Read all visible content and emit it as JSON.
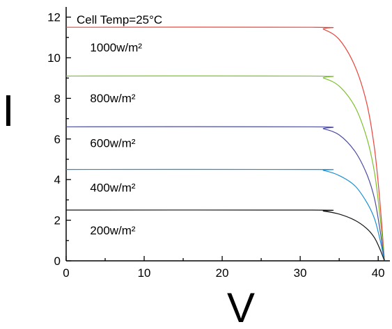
{
  "chart_data": {
    "type": "line",
    "title": "",
    "xlabel": "V",
    "ylabel": "I",
    "xlim": [
      0,
      41.5
    ],
    "ylim": [
      0,
      12.5
    ],
    "x_ticks": [
      0,
      10,
      20,
      30,
      40
    ],
    "y_ticks": [
      0,
      2,
      4,
      6,
      8,
      10,
      12
    ],
    "x_tick_labels": [
      "0",
      "10",
      "20",
      "30",
      "40"
    ],
    "y_tick_labels": [
      "0",
      "2",
      "4",
      "6",
      "8",
      "10",
      "12"
    ],
    "annotation": "Cell Temp=25°C",
    "grid": false,
    "series": [
      {
        "name": "1000w/m²",
        "color": "#e8463c",
        "points": [
          [
            0,
            11.5
          ],
          [
            31.5,
            11.5
          ],
          [
            33,
            11.4
          ],
          [
            35,
            10.9
          ],
          [
            37,
            9.6
          ],
          [
            38.5,
            7.8
          ],
          [
            39.5,
            5.6
          ],
          [
            40.2,
            3.0
          ],
          [
            40.8,
            0
          ]
        ]
      },
      {
        "name": "800w/m²",
        "color": "#7ec12c",
        "points": [
          [
            0,
            9.1
          ],
          [
            31.5,
            9.1
          ],
          [
            33,
            9.0
          ],
          [
            35,
            8.6
          ],
          [
            37,
            7.6
          ],
          [
            38.5,
            6.1
          ],
          [
            39.5,
            4.4
          ],
          [
            40.2,
            2.3
          ],
          [
            40.8,
            0
          ]
        ]
      },
      {
        "name": "600w/m²",
        "color": "#4a4aa0",
        "points": [
          [
            0,
            6.6
          ],
          [
            31.5,
            6.6
          ],
          [
            33,
            6.5
          ],
          [
            35,
            6.2
          ],
          [
            37,
            5.4
          ],
          [
            38.5,
            4.3
          ],
          [
            39.5,
            3.1
          ],
          [
            40.2,
            1.6
          ],
          [
            40.8,
            0
          ]
        ]
      },
      {
        "name": "400w/m²",
        "color": "#1a8fd0",
        "points": [
          [
            0,
            4.5
          ],
          [
            31.5,
            4.5
          ],
          [
            33,
            4.45
          ],
          [
            35,
            4.2
          ],
          [
            37,
            3.7
          ],
          [
            38.5,
            2.9
          ],
          [
            39.5,
            2.1
          ],
          [
            40.2,
            1.1
          ],
          [
            40.8,
            0
          ]
        ]
      },
      {
        "name": "200w/m²",
        "color": "#111111",
        "points": [
          [
            0,
            2.5
          ],
          [
            31.5,
            2.5
          ],
          [
            33,
            2.45
          ],
          [
            35,
            2.3
          ],
          [
            37,
            2.0
          ],
          [
            38.5,
            1.6
          ],
          [
            39.5,
            1.15
          ],
          [
            40.2,
            0.6
          ],
          [
            40.8,
            0
          ]
        ]
      }
    ],
    "series_label_anchor": [
      [
        2,
        10.3
      ],
      [
        2,
        7.8
      ],
      [
        2,
        5.6
      ],
      [
        2,
        3.4
      ],
      [
        2,
        1.3
      ]
    ]
  }
}
